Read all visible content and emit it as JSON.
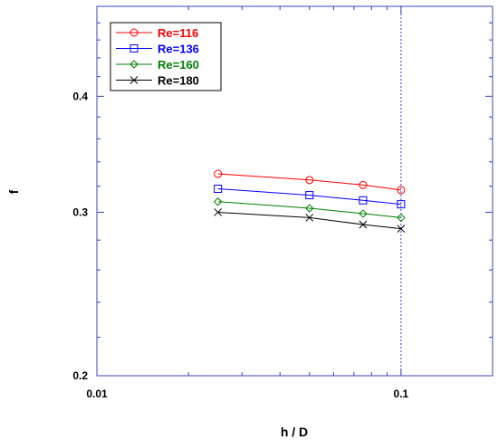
{
  "chart_data": {
    "type": "line",
    "title": "",
    "xlabel": "h / D",
    "ylabel": "f",
    "x_scale": "log",
    "y_scale": "log",
    "xlim": [
      0.01,
      0.2
    ],
    "ylim": [
      0.2,
      0.5
    ],
    "x_ticks": [
      0.01,
      0.1
    ],
    "x_tick_labels": [
      "0.01",
      "0.1"
    ],
    "y_ticks": [
      0.2,
      0.3,
      0.4
    ],
    "y_tick_labels": [
      "0.2",
      "0.3",
      "0.4"
    ],
    "grid": false,
    "reference_line": {
      "axis": "x",
      "value": 0.1,
      "style": "dotted"
    },
    "legend": {
      "position": "top-left"
    },
    "series": [
      {
        "name": "Re=116",
        "color": "#ff0000",
        "marker": "circle",
        "x": [
          0.025,
          0.05,
          0.075,
          0.1
        ],
        "y": [
          0.33,
          0.325,
          0.321,
          0.317
        ]
      },
      {
        "name": "Re=136",
        "color": "#0000ff",
        "marker": "square",
        "x": [
          0.025,
          0.05,
          0.075,
          0.1
        ],
        "y": [
          0.318,
          0.313,
          0.309,
          0.306
        ]
      },
      {
        "name": "Re=160",
        "color": "#008000",
        "marker": "diamond",
        "x": [
          0.025,
          0.05,
          0.075,
          0.1
        ],
        "y": [
          0.308,
          0.303,
          0.299,
          0.296
        ]
      },
      {
        "name": "Re=180",
        "color": "#000000",
        "marker": "x",
        "x": [
          0.025,
          0.05,
          0.075,
          0.1
        ],
        "y": [
          0.3,
          0.296,
          0.291,
          0.288
        ]
      }
    ]
  }
}
